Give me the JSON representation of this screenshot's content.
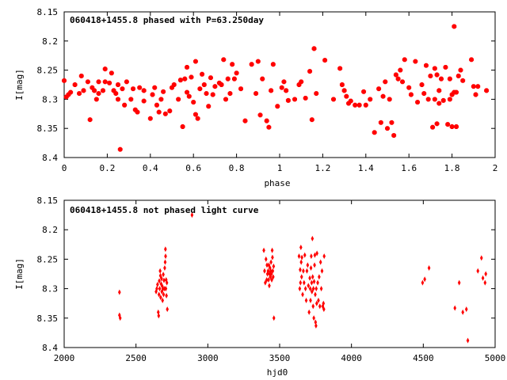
{
  "chart_data": [
    {
      "type": "scatter",
      "title": "060418+1455.8 phased with P=63.250day",
      "xlabel": "phase",
      "ylabel": "I[mag]",
      "xlim": [
        0,
        2
      ],
      "ylim": [
        8.15,
        8.4
      ],
      "y_inverted": true,
      "x_ticks": [
        "0",
        "0.2",
        "0.4",
        "0.6",
        "0.8",
        "1",
        "1.2",
        "1.4",
        "1.6",
        "1.8",
        "2"
      ],
      "y_ticks": [
        "8.15",
        "8.2",
        "8.25",
        "8.3",
        "8.35",
        "8.4"
      ],
      "marker_color": "#ff0000",
      "marker": "star",
      "points": [
        [
          0.0,
          8.268
        ],
        [
          0.01,
          8.296
        ],
        [
          0.02,
          8.292
        ],
        [
          0.03,
          8.288
        ],
        [
          0.05,
          8.275
        ],
        [
          0.07,
          8.29
        ],
        [
          0.08,
          8.26
        ],
        [
          0.09,
          8.285
        ],
        [
          0.11,
          8.27
        ],
        [
          0.12,
          8.335
        ],
        [
          0.13,
          8.28
        ],
        [
          0.14,
          8.285
        ],
        [
          0.15,
          8.3
        ],
        [
          0.16,
          8.29
        ],
        [
          0.16,
          8.27
        ],
        [
          0.18,
          8.285
        ],
        [
          0.19,
          8.27
        ],
        [
          0.19,
          8.248
        ],
        [
          0.21,
          8.272
        ],
        [
          0.22,
          8.255
        ],
        [
          0.23,
          8.285
        ],
        [
          0.24,
          8.29
        ],
        [
          0.25,
          8.275
        ],
        [
          0.25,
          8.3
        ],
        [
          0.26,
          8.386
        ],
        [
          0.27,
          8.282
        ],
        [
          0.28,
          8.31
        ],
        [
          0.29,
          8.27
        ],
        [
          0.31,
          8.3
        ],
        [
          0.32,
          8.282
        ],
        [
          0.33,
          8.318
        ],
        [
          0.34,
          8.322
        ],
        [
          0.35,
          8.28
        ],
        [
          0.37,
          8.285
        ],
        [
          0.37,
          8.303
        ],
        [
          0.4,
          8.333
        ],
        [
          0.41,
          8.292
        ],
        [
          0.42,
          8.28
        ],
        [
          0.43,
          8.31
        ],
        [
          0.44,
          8.322
        ],
        [
          0.45,
          8.3
        ],
        [
          0.46,
          8.287
        ],
        [
          0.47,
          8.325
        ],
        [
          0.49,
          8.32
        ],
        [
          0.5,
          8.28
        ],
        [
          0.51,
          8.275
        ],
        [
          0.53,
          8.3
        ],
        [
          0.54,
          8.267
        ],
        [
          0.55,
          8.347
        ],
        [
          0.56,
          8.265
        ],
        [
          0.57,
          8.288
        ],
        [
          0.57,
          8.245
        ],
        [
          0.58,
          8.295
        ],
        [
          0.59,
          8.262
        ],
        [
          0.6,
          8.305
        ],
        [
          0.61,
          8.235
        ],
        [
          0.61,
          8.326
        ],
        [
          0.62,
          8.333
        ],
        [
          0.63,
          8.282
        ],
        [
          0.64,
          8.257
        ],
        [
          0.65,
          8.275
        ],
        [
          0.66,
          8.29
        ],
        [
          0.67,
          8.312
        ],
        [
          0.68,
          8.263
        ],
        [
          0.69,
          8.292
        ],
        [
          0.7,
          8.278
        ],
        [
          0.72,
          8.272
        ],
        [
          0.73,
          8.275
        ],
        [
          0.74,
          8.232
        ],
        [
          0.75,
          8.3
        ],
        [
          0.76,
          8.265
        ],
        [
          0.77,
          8.29
        ],
        [
          0.78,
          8.24
        ],
        [
          0.79,
          8.265
        ],
        [
          0.8,
          8.255
        ],
        [
          0.82,
          8.282
        ],
        [
          0.84,
          8.337
        ],
        [
          0.87,
          8.24
        ],
        [
          0.89,
          8.29
        ],
        [
          0.9,
          8.235
        ],
        [
          0.91,
          8.327
        ],
        [
          0.92,
          8.265
        ],
        [
          0.94,
          8.337
        ],
        [
          0.95,
          8.348
        ],
        [
          0.96,
          8.285
        ],
        [
          0.97,
          8.24
        ],
        [
          0.99,
          8.312
        ],
        [
          1.01,
          8.28
        ],
        [
          1.02,
          8.27
        ],
        [
          1.03,
          8.285
        ],
        [
          1.04,
          8.302
        ],
        [
          1.07,
          8.3
        ],
        [
          1.09,
          8.275
        ],
        [
          1.1,
          8.27
        ],
        [
          1.12,
          8.298
        ],
        [
          1.14,
          8.252
        ],
        [
          1.15,
          8.335
        ],
        [
          1.16,
          8.213
        ],
        [
          1.17,
          8.29
        ],
        [
          1.21,
          8.233
        ],
        [
          1.25,
          8.3
        ],
        [
          1.28,
          8.247
        ],
        [
          1.29,
          8.275
        ],
        [
          1.3,
          8.285
        ],
        [
          1.31,
          8.295
        ],
        [
          1.32,
          8.307
        ],
        [
          1.33,
          8.303
        ],
        [
          1.35,
          8.31
        ],
        [
          1.37,
          8.31
        ],
        [
          1.39,
          8.287
        ],
        [
          1.4,
          8.31
        ],
        [
          1.42,
          8.3
        ],
        [
          1.44,
          8.357
        ],
        [
          1.46,
          8.282
        ],
        [
          1.47,
          8.34
        ],
        [
          1.48,
          8.295
        ],
        [
          1.49,
          8.27
        ],
        [
          1.5,
          8.35
        ],
        [
          1.51,
          8.3
        ],
        [
          1.52,
          8.34
        ],
        [
          1.53,
          8.362
        ],
        [
          1.54,
          8.258
        ],
        [
          1.55,
          8.265
        ],
        [
          1.56,
          8.25
        ],
        [
          1.57,
          8.27
        ],
        [
          1.58,
          8.232
        ],
        [
          1.6,
          8.28
        ],
        [
          1.61,
          8.292
        ],
        [
          1.63,
          8.235
        ],
        [
          1.64,
          8.305
        ],
        [
          1.66,
          8.275
        ],
        [
          1.67,
          8.29
        ],
        [
          1.68,
          8.242
        ],
        [
          1.69,
          8.3
        ],
        [
          1.7,
          8.26
        ],
        [
          1.71,
          8.348
        ],
        [
          1.72,
          8.247
        ],
        [
          1.72,
          8.3
        ],
        [
          1.73,
          8.258
        ],
        [
          1.73,
          8.342
        ],
        [
          1.74,
          8.307
        ],
        [
          1.74,
          8.285
        ],
        [
          1.75,
          8.265
        ],
        [
          1.76,
          8.302
        ],
        [
          1.77,
          8.245
        ],
        [
          1.78,
          8.343
        ],
        [
          1.79,
          8.265
        ],
        [
          1.79,
          8.3
        ],
        [
          1.8,
          8.347
        ],
        [
          1.8,
          8.292
        ],
        [
          1.81,
          8.175
        ],
        [
          1.81,
          8.288
        ],
        [
          1.82,
          8.347
        ],
        [
          1.82,
          8.288
        ],
        [
          1.83,
          8.26
        ],
        [
          1.84,
          8.25
        ],
        [
          1.85,
          8.268
        ],
        [
          1.89,
          8.232
        ],
        [
          1.9,
          8.278
        ],
        [
          1.91,
          8.292
        ],
        [
          1.92,
          8.278
        ],
        [
          1.96,
          8.285
        ]
      ]
    },
    {
      "type": "scatter",
      "title": "060418+1455.8 not phased light curve",
      "xlabel": "hjd0",
      "ylabel": "I[mag]",
      "xlim": [
        2000,
        5000
      ],
      "ylim": [
        8.15,
        8.4
      ],
      "y_inverted": true,
      "x_ticks": [
        "2000",
        "2500",
        "3000",
        "3500",
        "4000",
        "4500",
        "5000"
      ],
      "y_ticks": [
        "8.15",
        "8.2",
        "8.25",
        "8.3",
        "8.35",
        "8.4"
      ],
      "marker_color": "#ff0000",
      "marker": "diamond",
      "points": [
        [
          2385,
          8.306
        ],
        [
          2385,
          8.345
        ],
        [
          2390,
          8.35
        ],
        [
          2640,
          8.305
        ],
        [
          2645,
          8.3
        ],
        [
          2650,
          8.293
        ],
        [
          2655,
          8.34
        ],
        [
          2658,
          8.346
        ],
        [
          2660,
          8.31
        ],
        [
          2662,
          8.287
        ],
        [
          2665,
          8.3
        ],
        [
          2668,
          8.27
        ],
        [
          2670,
          8.278
        ],
        [
          2672,
          8.315
        ],
        [
          2675,
          8.292
        ],
        [
          2678,
          8.283
        ],
        [
          2680,
          8.305
        ],
        [
          2683,
          8.296
        ],
        [
          2685,
          8.32
        ],
        [
          2688,
          8.3
        ],
        [
          2690,
          8.276
        ],
        [
          2692,
          8.31
        ],
        [
          2695,
          8.286
        ],
        [
          2698,
          8.3
        ],
        [
          2700,
          8.265
        ],
        [
          2703,
          8.255
        ],
        [
          2705,
          8.233
        ],
        [
          2706,
          8.245
        ],
        [
          2708,
          8.3
        ],
        [
          2710,
          8.285
        ],
        [
          2712,
          8.312
        ],
        [
          2715,
          8.29
        ],
        [
          2718,
          8.335
        ],
        [
          2890,
          8.175
        ],
        [
          3390,
          8.235
        ],
        [
          3395,
          8.27
        ],
        [
          3400,
          8.29
        ],
        [
          3405,
          8.25
        ],
        [
          3410,
          8.285
        ],
        [
          3412,
          8.26
        ],
        [
          3415,
          8.275
        ],
        [
          3420,
          8.27
        ],
        [
          3423,
          8.285
        ],
        [
          3425,
          8.26
        ],
        [
          3428,
          8.295
        ],
        [
          3430,
          8.275
        ],
        [
          3433,
          8.265
        ],
        [
          3435,
          8.28
        ],
        [
          3438,
          8.27
        ],
        [
          3440,
          8.255
        ],
        [
          3442,
          8.275
        ],
        [
          3445,
          8.285
        ],
        [
          3448,
          8.235
        ],
        [
          3450,
          8.247
        ],
        [
          3452,
          8.27
        ],
        [
          3455,
          8.28
        ],
        [
          3458,
          8.262
        ],
        [
          3460,
          8.35
        ],
        [
          3635,
          8.245
        ],
        [
          3640,
          8.3
        ],
        [
          3643,
          8.268
        ],
        [
          3645,
          8.29
        ],
        [
          3648,
          8.23
        ],
        [
          3650,
          8.255
        ],
        [
          3653,
          8.28
        ],
        [
          3655,
          8.247
        ],
        [
          3660,
          8.31
        ],
        [
          3665,
          8.27
        ],
        [
          3670,
          8.29
        ],
        [
          3675,
          8.243
        ],
        [
          3680,
          8.3
        ],
        [
          3685,
          8.32
        ],
        [
          3690,
          8.27
        ],
        [
          3695,
          8.26
        ],
        [
          3700,
          8.295
        ],
        [
          3705,
          8.34
        ],
        [
          3710,
          8.282
        ],
        [
          3713,
          8.3
        ],
        [
          3715,
          8.32
        ],
        [
          3718,
          8.265
        ],
        [
          3720,
          8.245
        ],
        [
          3723,
          8.29
        ],
        [
          3725,
          8.305
        ],
        [
          3728,
          8.215
        ],
        [
          3730,
          8.28
        ],
        [
          3733,
          8.33
        ],
        [
          3735,
          8.3
        ],
        [
          3738,
          8.35
        ],
        [
          3740,
          8.288
        ],
        [
          3743,
          8.26
        ],
        [
          3745,
          8.243
        ],
        [
          3748,
          8.31
        ],
        [
          3750,
          8.357
        ],
        [
          3753,
          8.363
        ],
        [
          3755,
          8.3
        ],
        [
          3758,
          8.325
        ],
        [
          3760,
          8.24
        ],
        [
          3765,
          8.29
        ],
        [
          3770,
          8.32
        ],
        [
          3775,
          8.28
        ],
        [
          3780,
          8.33
        ],
        [
          3785,
          8.255
        ],
        [
          3790,
          8.3
        ],
        [
          3795,
          8.27
        ],
        [
          3800,
          8.33
        ],
        [
          3805,
          8.325
        ],
        [
          3808,
          8.335
        ],
        [
          3810,
          8.245
        ],
        [
          4495,
          8.29
        ],
        [
          4510,
          8.284
        ],
        [
          4540,
          8.265
        ],
        [
          4720,
          8.333
        ],
        [
          4750,
          8.29
        ],
        [
          4775,
          8.34
        ],
        [
          4800,
          8.335
        ],
        [
          4810,
          8.388
        ],
        [
          4880,
          8.27
        ],
        [
          4905,
          8.248
        ],
        [
          4915,
          8.282
        ],
        [
          4930,
          8.29
        ],
        [
          4935,
          8.275
        ]
      ]
    }
  ]
}
